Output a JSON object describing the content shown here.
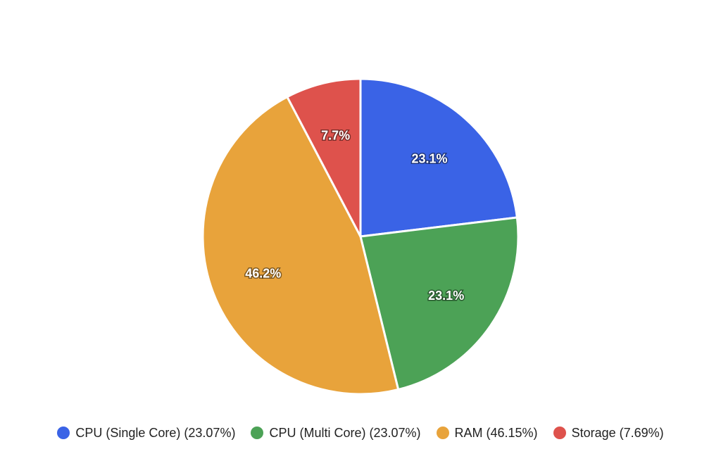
{
  "chart_data": {
    "type": "pie",
    "categories": [
      "CPU (Single Core)",
      "CPU (Multi Core)",
      "RAM",
      "Storage"
    ],
    "values": [
      23.07,
      23.07,
      46.15,
      7.69
    ],
    "slice_labels": [
      "23.1%",
      "23.1%",
      "46.2%",
      "7.7%"
    ],
    "legend_labels": [
      "CPU (Single Core) (23.07%)",
      "CPU (Multi Core) (23.07%)",
      "RAM (46.15%)",
      "Storage (7.69%)"
    ],
    "colors": [
      "#3A63E6",
      "#4CA256",
      "#E8A33B",
      "#DE524C"
    ],
    "legend_placement": "bottom",
    "start_angle": "12 o'clock",
    "direction": "clockwise"
  }
}
